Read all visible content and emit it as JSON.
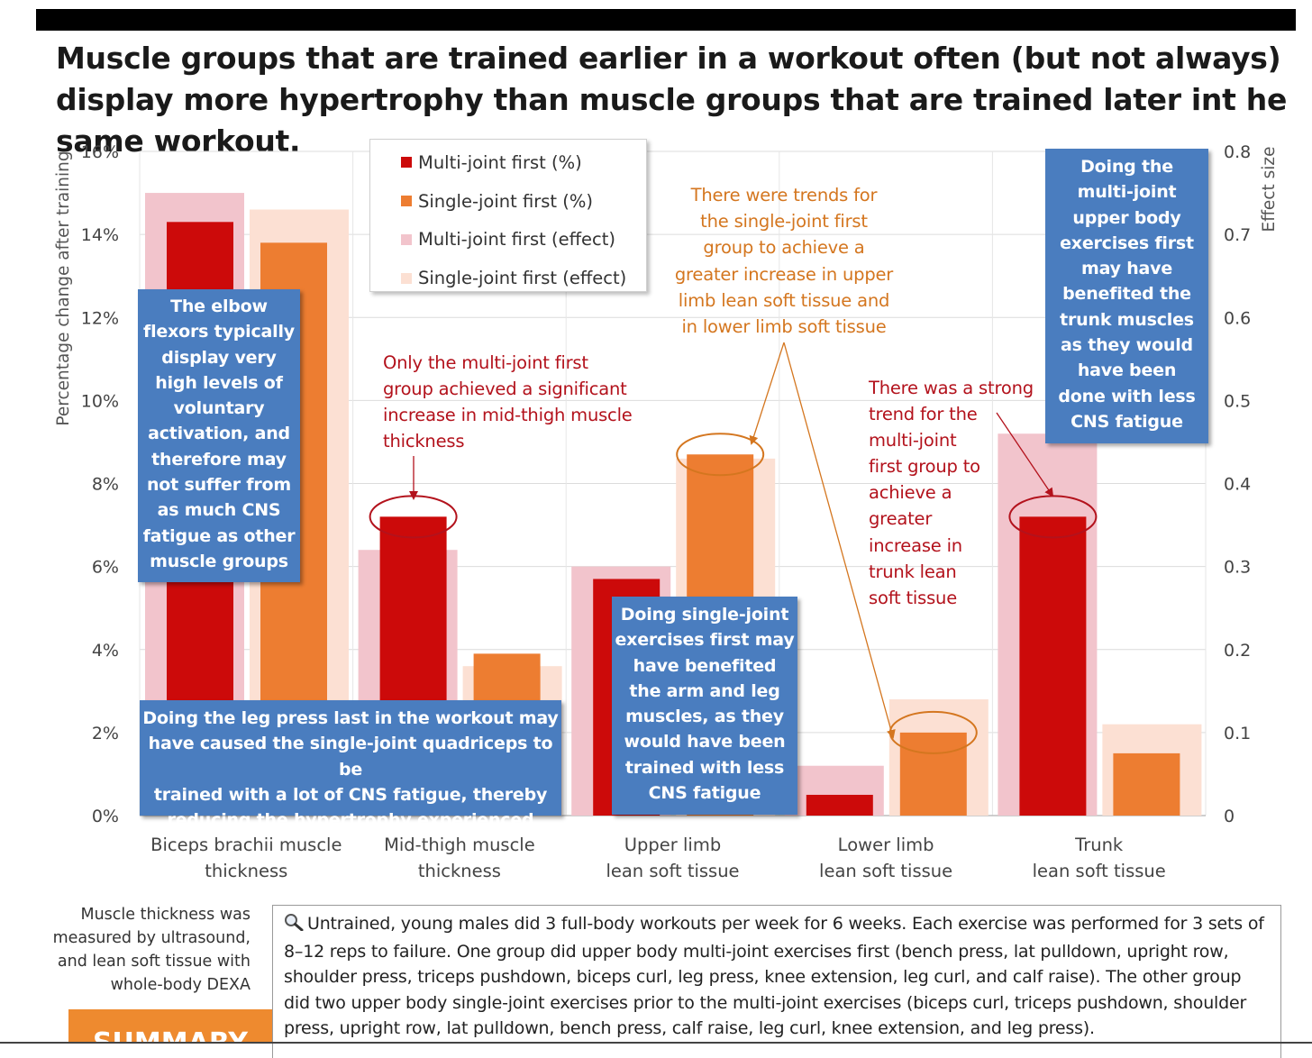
{
  "title": "Muscle groups that are trained earlier in a workout often (but not always) display more hypertrophy than muscle groups that are trained later int he same workout.",
  "colors": {
    "multi_pct": "#cc0a0a",
    "single_pct": "#ed7d31",
    "multi_effect": "#f2c4cc",
    "single_effect": "#fce0d3",
    "note_box": "#4a7dbf",
    "annotation_red": "#b3121c",
    "annotation_orange": "#d4761f"
  },
  "chart_data": {
    "type": "bar",
    "categories": [
      "Biceps brachii muscle thickness",
      "Mid-thigh muscle thickness",
      "Upper limb lean soft tissue",
      "Lower limb lean soft tissue",
      "Trunk lean soft tissue"
    ],
    "category_labels": [
      [
        "Biceps brachii muscle",
        "thickness"
      ],
      [
        "Mid-thigh muscle",
        "thickness"
      ],
      [
        "Upper limb",
        "lean soft tissue"
      ],
      [
        "Lower limb",
        "lean soft tissue"
      ],
      [
        "Trunk",
        "lean soft tissue"
      ]
    ],
    "series": [
      {
        "name": "Multi-joint first (%)",
        "axis": "left",
        "values": [
          14.3,
          7.2,
          5.7,
          0.5,
          7.2
        ]
      },
      {
        "name": "Single-joint first (%)",
        "axis": "left",
        "values": [
          13.8,
          3.9,
          8.7,
          2.0,
          1.5
        ]
      },
      {
        "name": "Multi-joint first (effect)",
        "axis": "right",
        "values": [
          0.75,
          0.32,
          0.3,
          0.06,
          0.46
        ]
      },
      {
        "name": "Single-joint first (effect)",
        "axis": "right",
        "values": [
          0.73,
          0.18,
          0.43,
          0.14,
          0.11
        ]
      }
    ],
    "ylabel": "Percentage change after training",
    "y2label": "Effect size",
    "ylim": [
      0,
      16
    ],
    "y2lim": [
      0,
      0.8
    ],
    "yticks": [
      "0%",
      "2%",
      "4%",
      "6%",
      "8%",
      "10%",
      "12%",
      "14%",
      "16%"
    ],
    "y2ticks": [
      "0",
      "0.1",
      "0.2",
      "0.3",
      "0.4",
      "0.5",
      "0.6",
      "0.7",
      "0.8"
    ],
    "grid": true
  },
  "legend": [
    {
      "label": "Multi-joint first (%)",
      "color": "#cc0a0a"
    },
    {
      "label": "Single-joint first (%)",
      "color": "#ed7d31"
    },
    {
      "label": "Multi-joint first (effect)",
      "color": "#f2c4cc"
    },
    {
      "label": "Single-joint first (effect)",
      "color": "#fce0d3"
    }
  ],
  "notes": {
    "elbow": [
      "The elbow",
      "flexors typically",
      "display very",
      "high levels of",
      "voluntary",
      "activation, and",
      "therefore may",
      "not suffer from",
      "as much CNS",
      "fatigue as other",
      "muscle groups"
    ],
    "leg_press": [
      "Doing the leg press last in the workout may",
      "have caused the single-joint quadriceps to be",
      "trained with a lot of CNS fatigue, thereby",
      "reducing the hypertrophy experienced"
    ],
    "single_joint": [
      "Doing single-joint",
      "exercises first may",
      "have benefited",
      "the arm and leg",
      "muscles, as they",
      "would have been",
      "trained with less",
      "CNS fatigue"
    ],
    "trunk": [
      "Doing the",
      "multi-joint",
      "upper body",
      "exercises first",
      "may have",
      "benefited the",
      "trunk muscles",
      "as they would",
      "have been",
      "done with less",
      "CNS fatigue"
    ]
  },
  "annotations": {
    "mid_thigh": [
      "Only the multi-joint first",
      "group achieved a significant",
      "increase in mid-thigh muscle",
      "thickness"
    ],
    "trunk_trend": [
      "There was a strong",
      "trend for the",
      "multi-joint",
      "first group to",
      "achieve a",
      "greater",
      "increase in",
      "trunk lean",
      "soft tissue"
    ],
    "single_trend": [
      "There were trends for",
      "the single-joint first",
      "group to achieve a",
      "greater increase in upper",
      "limb lean soft tissue and",
      "in lower limb soft tissue"
    ]
  },
  "method_note": [
    "Muscle thickness was",
    "measured by ultrasound,",
    "and lean soft tissue with",
    "whole-body DEXA"
  ],
  "description": "Untrained, young males did 3 full-body workouts per week for 6 weeks. Each exercise was performed for 3 sets of 8–12 reps to failure. One group did upper body multi-joint exercises first (bench press, lat pulldown, upright row, shoulder press, triceps pushdown, biceps curl, leg press, knee extension, leg curl, and calf raise). The other group did two upper body single-joint exercises prior to the multi-joint exercises (biceps curl, triceps pushdown, shoulder press, upright row, lat pulldown, bench press, calf raise, leg curl, knee extension, and leg press).",
  "summary_label": "SUMMARY"
}
